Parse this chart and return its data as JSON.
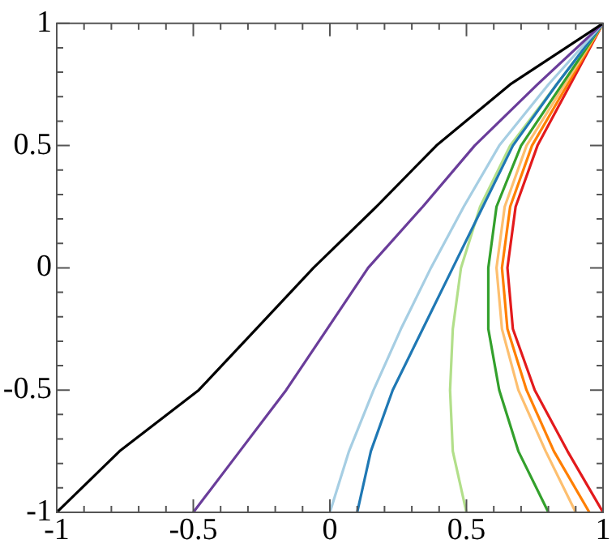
{
  "chart_data": {
    "type": "line",
    "xlim": [
      -1,
      1
    ],
    "ylim": [
      -1,
      1
    ],
    "xticks": [
      -1,
      {
        "value": -0.9,
        "label": null
      },
      {
        "value": -0.8,
        "label": null
      },
      {
        "value": -0.7,
        "label": null
      },
      {
        "value": -0.6,
        "label": null
      },
      -0.5,
      {
        "value": -0.4,
        "label": null
      },
      {
        "value": -0.3,
        "label": null
      },
      {
        "value": -0.2,
        "label": null
      },
      {
        "value": -0.1,
        "label": null
      },
      0,
      {
        "value": 0.1,
        "label": null
      },
      {
        "value": 0.2,
        "label": null
      },
      {
        "value": 0.3,
        "label": null
      },
      {
        "value": 0.4,
        "label": null
      },
      0.5,
      {
        "value": 0.6,
        "label": null
      },
      {
        "value": 0.7,
        "label": null
      },
      {
        "value": 0.8,
        "label": null
      },
      {
        "value": 0.9,
        "label": null
      },
      1
    ],
    "yticks": [
      -1,
      {
        "value": -0.9,
        "label": null
      },
      {
        "value": -0.8,
        "label": null
      },
      {
        "value": -0.7,
        "label": null
      },
      {
        "value": -0.6,
        "label": null
      },
      -0.5,
      {
        "value": -0.4,
        "label": null
      },
      {
        "value": -0.3,
        "label": null
      },
      {
        "value": -0.2,
        "label": null
      },
      {
        "value": -0.1,
        "label": null
      },
      0,
      {
        "value": 0.1,
        "label": null
      },
      {
        "value": 0.2,
        "label": null
      },
      {
        "value": 0.3,
        "label": null
      },
      {
        "value": 0.4,
        "label": null
      },
      0.5,
      {
        "value": 0.6,
        "label": null
      },
      {
        "value": 0.7,
        "label": null
      },
      {
        "value": 0.8,
        "label": null
      },
      {
        "value": 0.9,
        "label": null
      },
      1
    ],
    "grid": false,
    "legend": false,
    "marker": "none",
    "line_style": "solid",
    "series": [
      {
        "color": "#000000",
        "x": [
          -1,
          -0.77,
          -0.48,
          -0.27,
          -0.06,
          0.17,
          0.39,
          0.66,
          1
        ],
        "values": [
          -1,
          -0.75,
          -0.5,
          -0.25,
          0,
          0.25,
          0.5,
          0.75,
          1
        ]
      },
      {
        "color": "#6a3d9a",
        "x": [
          -0.5,
          -0.33,
          -0.16,
          -0.01,
          0.14,
          0.34,
          0.53,
          0.76,
          1
        ],
        "values": [
          -1,
          -0.75,
          -0.5,
          -0.25,
          0,
          0.25,
          0.5,
          0.75,
          1
        ]
      },
      {
        "color": "#a6cee3",
        "x": [
          0,
          0.07,
          0.16,
          0.26,
          0.37,
          0.49,
          0.62,
          0.8,
          1
        ],
        "values": [
          -1,
          -0.75,
          -0.5,
          -0.25,
          0,
          0.25,
          0.5,
          0.75,
          1
        ]
      },
      {
        "color": "#1f78b4",
        "x": [
          0.1,
          0.15,
          0.23,
          0.34,
          0.45,
          0.56,
          0.67,
          0.83,
          1
        ],
        "values": [
          -1,
          -0.75,
          -0.5,
          -0.25,
          0,
          0.25,
          0.5,
          0.75,
          1
        ]
      },
      {
        "color": "#b2df8a",
        "x": [
          0.5,
          0.45,
          0.44,
          0.45,
          0.48,
          0.55,
          0.66,
          0.83,
          1
        ],
        "values": [
          -1,
          -0.75,
          -0.5,
          -0.25,
          0,
          0.25,
          0.5,
          0.75,
          1
        ]
      },
      {
        "color": "#33a02c",
        "x": [
          0.8,
          0.69,
          0.62,
          0.58,
          0.58,
          0.61,
          0.7,
          0.85,
          1
        ],
        "values": [
          -1,
          -0.75,
          -0.5,
          -0.25,
          0,
          0.25,
          0.5,
          0.75,
          1
        ]
      },
      {
        "color": "#fdbf6f",
        "x": [
          0.9,
          0.79,
          0.69,
          0.63,
          0.61,
          0.64,
          0.72,
          0.86,
          1
        ],
        "values": [
          -1,
          -0.75,
          -0.5,
          -0.25,
          0,
          0.25,
          0.5,
          0.75,
          1
        ]
      },
      {
        "color": "#ff7f00",
        "x": [
          0.95,
          0.82,
          0.72,
          0.65,
          0.63,
          0.66,
          0.74,
          0.87,
          1
        ],
        "values": [
          -1,
          -0.75,
          -0.5,
          -0.25,
          0,
          0.25,
          0.5,
          0.75,
          1
        ]
      },
      {
        "color": "#e31a1c",
        "x": [
          1,
          0.87,
          0.75,
          0.67,
          0.65,
          0.68,
          0.76,
          0.88,
          1
        ],
        "values": [
          -1,
          -0.75,
          -0.5,
          -0.25,
          0,
          0.25,
          0.5,
          0.75,
          1
        ]
      }
    ]
  }
}
